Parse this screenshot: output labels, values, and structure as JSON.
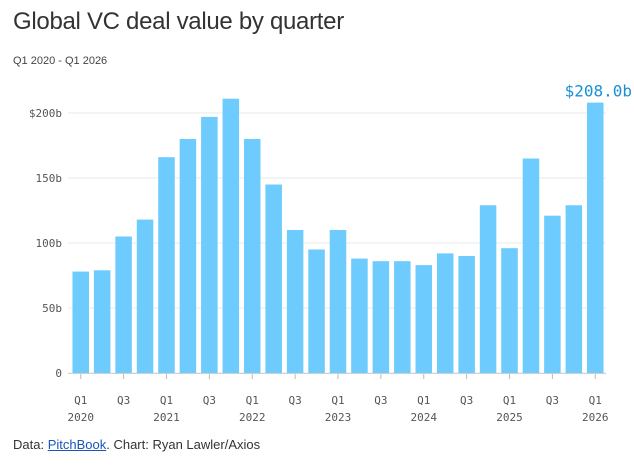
{
  "chart_data": {
    "type": "bar",
    "title": "Global VC deal value by quarter",
    "subtitle": "Q1 2020 - Q1 2026",
    "ylabel": "",
    "xlabel": "",
    "ylim": [
      0,
      210
    ],
    "yticks": [
      {
        "value": 0,
        "label": "0"
      },
      {
        "value": 50,
        "label": "50b"
      },
      {
        "value": 100,
        "label": "100b"
      },
      {
        "value": 150,
        "label": "150b"
      },
      {
        "value": 200,
        "label": "$200b"
      }
    ],
    "categories": [
      "Q1 2020",
      "Q2 2020",
      "Q3 2020",
      "Q4 2020",
      "Q1 2021",
      "Q2 2021",
      "Q3 2021",
      "Q4 2021",
      "Q1 2022",
      "Q2 2022",
      "Q3 2022",
      "Q4 2022",
      "Q1 2023",
      "Q2 2023",
      "Q3 2023",
      "Q4 2023",
      "Q1 2024",
      "Q2 2024",
      "Q3 2024",
      "Q4 2024",
      "Q1 2025",
      "Q2 2025",
      "Q3 2025",
      "Q4 2025",
      "Q1 2026"
    ],
    "values": [
      78,
      79,
      105,
      118,
      166,
      180,
      197,
      211,
      180,
      145,
      110,
      95,
      110,
      88,
      86,
      86,
      83,
      92,
      90,
      129,
      96,
      165,
      121,
      129,
      208
    ],
    "x_tick_labels": [
      {
        "index": 0,
        "quarter": "Q1",
        "year": "2020"
      },
      {
        "index": 2,
        "quarter": "Q3",
        "year": ""
      },
      {
        "index": 4,
        "quarter": "Q1",
        "year": "2021"
      },
      {
        "index": 6,
        "quarter": "Q3",
        "year": ""
      },
      {
        "index": 8,
        "quarter": "Q1",
        "year": "2022"
      },
      {
        "index": 10,
        "quarter": "Q3",
        "year": ""
      },
      {
        "index": 12,
        "quarter": "Q1",
        "year": "2023"
      },
      {
        "index": 14,
        "quarter": "Q3",
        "year": ""
      },
      {
        "index": 16,
        "quarter": "Q1",
        "year": "2024"
      },
      {
        "index": 18,
        "quarter": "Q3",
        "year": ""
      },
      {
        "index": 20,
        "quarter": "Q1",
        "year": "2025"
      },
      {
        "index": 22,
        "quarter": "Q3",
        "year": ""
      },
      {
        "index": 24,
        "quarter": "Q1",
        "year": "2026"
      }
    ],
    "annotation": {
      "index": 24,
      "label": "$208.0b"
    },
    "grid": true,
    "colors": {
      "bar": "#6dcbfd",
      "annotation": "#1a8fd6",
      "grid": "#e9e9e9",
      "tick_text": "#555555"
    }
  },
  "footer": {
    "prefix": "Data: ",
    "source_link": "PitchBook",
    "suffix": ". Chart: Ryan Lawler/Axios"
  }
}
